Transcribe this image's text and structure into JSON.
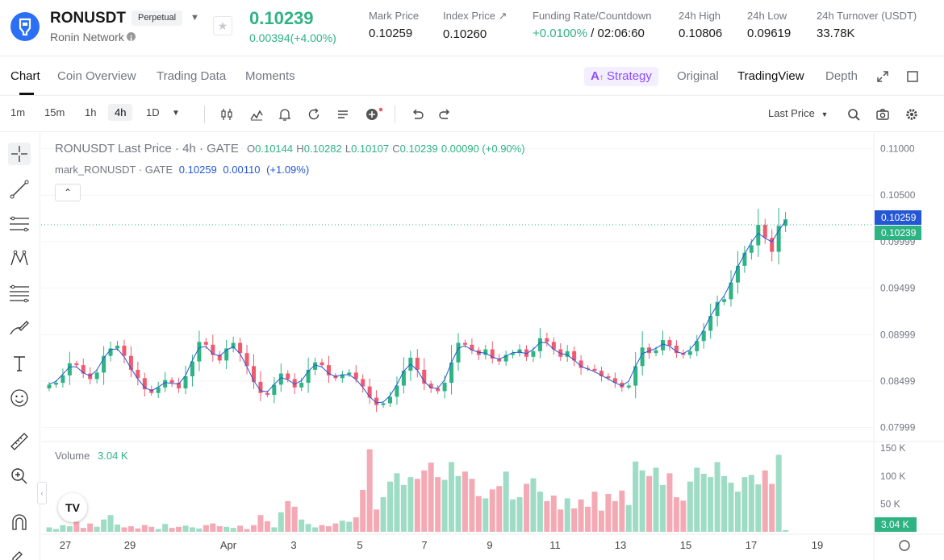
{
  "header": {
    "symbol": "RONUSDT",
    "contract_type": "Perpetual",
    "network": "Ronin Network",
    "last_price": "0.10239",
    "change": "0.00394(+4.00%)",
    "stats": [
      {
        "label": "Mark Price",
        "value": "0.10259"
      },
      {
        "label": "Index Price ↗",
        "value": "0.10260"
      },
      {
        "label": "Funding Rate/Countdown",
        "value_rate": "+0.0100%",
        "value_countdown": "/ 02:06:60"
      },
      {
        "label": "24h High",
        "value": "0.10806"
      },
      {
        "label": "24h Low",
        "value": "0.09619"
      },
      {
        "label": "24h Turnover (USDT)",
        "value": "33.78K"
      }
    ]
  },
  "tabs": {
    "chart": "Chart",
    "coin_overview": "Coin Overview",
    "trading_data": "Trading Data",
    "moments": "Moments",
    "strategy": "Strategy",
    "original": "Original",
    "tradingview": "TradingView",
    "depth": "Depth"
  },
  "toolbar": {
    "intervals": [
      "1m",
      "15m",
      "1h",
      "4h",
      "1D"
    ],
    "selected_interval": "4h",
    "price_source": "Last Price"
  },
  "legend": {
    "main_title": "RONUSDT Last Price · 4h · GATE",
    "o_label": "O",
    "o_value": "0.10144",
    "h_label": "H",
    "h_value": "0.10282",
    "l_label": "L",
    "l_value": "0.10107",
    "c_label": "C",
    "c_value": "0.10239",
    "change": "0.00090 (+0.90%)",
    "mark_title": "mark_RONUSDT · GATE",
    "mark_value": "0.10259",
    "mark_change": "0.00110",
    "mark_pct": "(+1.09%)",
    "volume_label": "Volume",
    "volume_value": "3.04 K"
  },
  "colors": {
    "up": "#2eb383",
    "down": "#f05a6e",
    "mark": "#2457d6",
    "vol_up": "#9fdcc5",
    "vol_down": "#f4aab5"
  },
  "chart_data": {
    "type": "candlestick",
    "title": "RONUSDT Last Price · 4h · GATE",
    "price_axis": {
      "ticks": [
        "0.11000",
        "0.10500",
        "0.09999",
        "0.09499",
        "0.08999",
        "0.08499",
        "0.07999"
      ],
      "range": [
        0.0783,
        0.1117
      ]
    },
    "price_tags": {
      "mark": "0.10259",
      "last": "0.10239"
    },
    "volume_axis": {
      "ticks": [
        "150 K",
        "100 K",
        "50 K"
      ],
      "max": 156,
      "current": "3.04 K"
    },
    "x_ticks": [
      "27",
      "29",
      "Apr",
      "3",
      "5",
      "7",
      "9",
      "11",
      "13",
      "15",
      "17",
      "19"
    ],
    "close_series": [
      0.0846,
      0.0848,
      0.0856,
      0.0869,
      0.0867,
      0.0858,
      0.0852,
      0.0859,
      0.0877,
      0.0885,
      0.0888,
      0.0877,
      0.0862,
      0.0853,
      0.0841,
      0.0837,
      0.0843,
      0.0851,
      0.0848,
      0.0842,
      0.0855,
      0.0871,
      0.0892,
      0.0889,
      0.0878,
      0.0872,
      0.0885,
      0.0891,
      0.088,
      0.0866,
      0.0849,
      0.0837,
      0.0835,
      0.0846,
      0.0858,
      0.0852,
      0.0843,
      0.0848,
      0.0862,
      0.087,
      0.0867,
      0.0856,
      0.0853,
      0.0857,
      0.0859,
      0.0852,
      0.0844,
      0.0832,
      0.0824,
      0.0826,
      0.0833,
      0.0845,
      0.0861,
      0.0875,
      0.0862,
      0.0847,
      0.0842,
      0.0839,
      0.0848,
      0.087,
      0.0891,
      0.0889,
      0.0883,
      0.0878,
      0.0884,
      0.0874,
      0.0871,
      0.0878,
      0.088,
      0.0884,
      0.0876,
      0.0882,
      0.0896,
      0.0892,
      0.0884,
      0.0876,
      0.0882,
      0.0872,
      0.0864,
      0.0863,
      0.0861,
      0.0855,
      0.0853,
      0.0848,
      0.0843,
      0.0845,
      0.0866,
      0.0886,
      0.088,
      0.0883,
      0.0894,
      0.0888,
      0.088,
      0.0878,
      0.0882,
      0.0893,
      0.0904,
      0.092,
      0.0935,
      0.0938,
      0.0956,
      0.0974,
      0.0988,
      0.0996,
      0.1018,
      0.1004,
      0.0989,
      0.1017,
      0.1024
    ],
    "volume_k": [
      8,
      5,
      12,
      10,
      18,
      7,
      15,
      9,
      22,
      30,
      13,
      8,
      10,
      6,
      12,
      9,
      5,
      14,
      7,
      9,
      11,
      8,
      6,
      12,
      15,
      10,
      9,
      7,
      11,
      5,
      12,
      30,
      19,
      8,
      35,
      55,
      45,
      22,
      14,
      8,
      12,
      10,
      15,
      20,
      18,
      26,
      75,
      148,
      40,
      62,
      90,
      105,
      84,
      98,
      95,
      110,
      124,
      98,
      93,
      125,
      100,
      108,
      95,
      64,
      60,
      76,
      82,
      108,
      58,
      62,
      86,
      96,
      72,
      55,
      65,
      40,
      60,
      42,
      58,
      45,
      72,
      38,
      68,
      55,
      74,
      48,
      126,
      110,
      100,
      115,
      84,
      105,
      62,
      56,
      90,
      115,
      104,
      98,
      125,
      100,
      88,
      72,
      98,
      102,
      85,
      110,
      86,
      138,
      3
    ]
  }
}
